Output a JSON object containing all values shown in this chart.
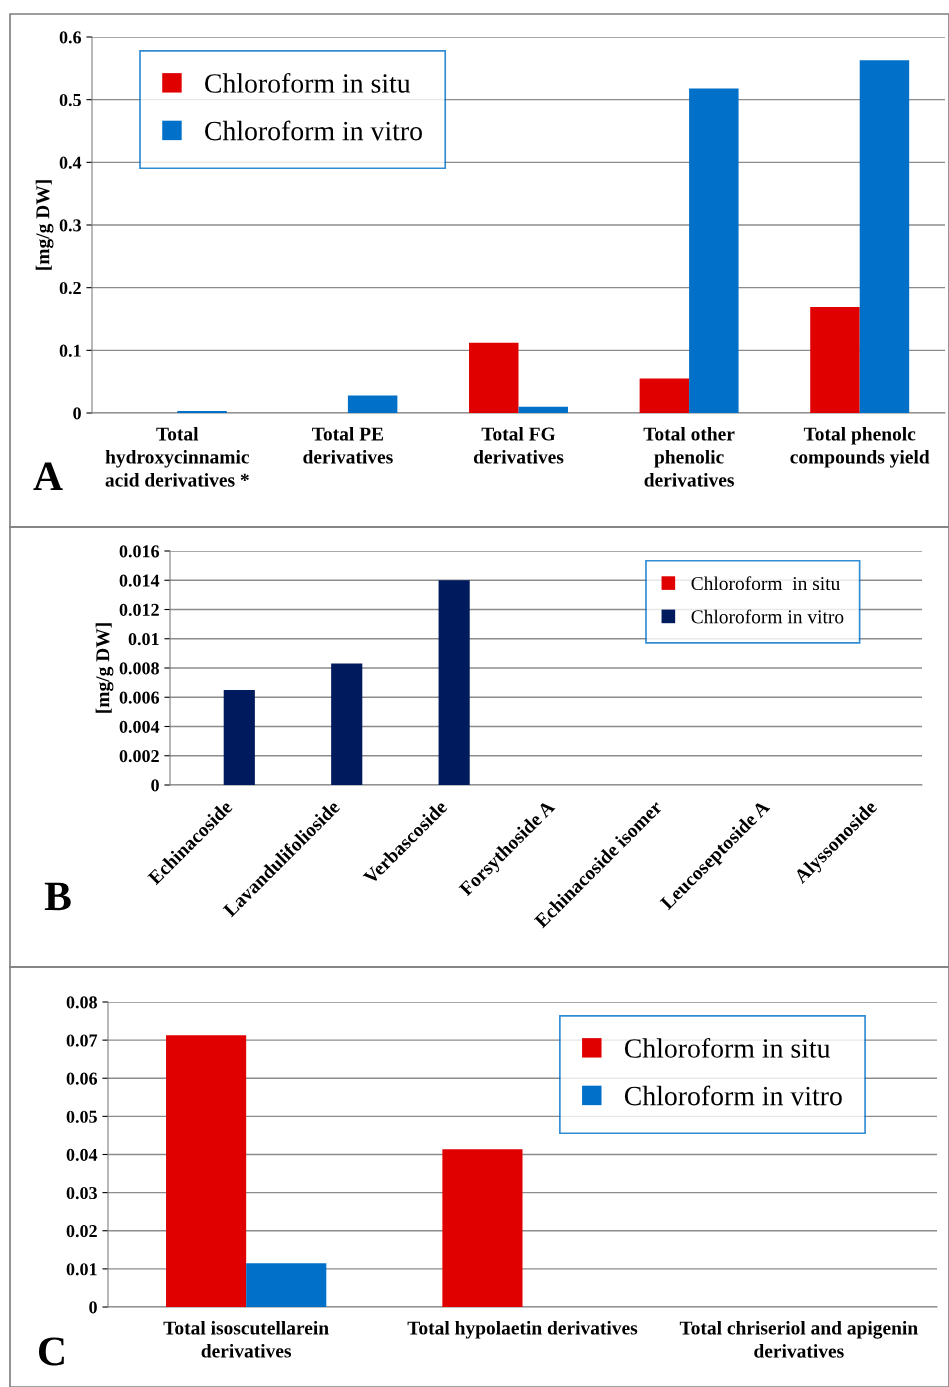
{
  "chart_data": [
    {
      "type": "bar",
      "ylabel": "[mg/g DW]",
      "annotations": [
        "A"
      ],
      "categories": [
        "Total hydroxycinnamic acid derivatives *",
        "Total PE derivatives",
        "Total FG derivatives",
        "Total other phenolic derivatives",
        "Total phenolc compounds yield"
      ],
      "series": [
        {
          "name": "Chloroform in situ",
          "color": "#e00000",
          "values": [
            0,
            0,
            0.112,
            0.055,
            0.169
          ]
        },
        {
          "name": "Chloroform in vitro",
          "color": "#0070c8",
          "values": [
            0.003,
            0.028,
            0.01,
            0.518,
            0.563
          ]
        }
      ],
      "ylim": [
        0,
        0.6
      ],
      "yticks": [
        0,
        0.1,
        0.2,
        0.3,
        0.4,
        0.5,
        0.6
      ],
      "grid": "y",
      "legend": "top left"
    },
    {
      "type": "bar",
      "ylabel": "[mg/g DW]",
      "annotations": [
        "B"
      ],
      "categories": [
        "Echinacoside",
        "Lavandulifolioside",
        "Verbascoside",
        "Forsythoside A",
        "Echinacoside isomer",
        "Leucoseptoside A",
        "Alyssonoside"
      ],
      "series": [
        {
          "name": "Chloroform  in situ",
          "color": "#e00000",
          "values": [
            0,
            0,
            0,
            0,
            0,
            0,
            0
          ]
        },
        {
          "name": "Chloroform in vitro",
          "color": "#001a5e",
          "values": [
            0.0065,
            0.0083,
            0.014,
            0,
            0,
            0,
            0
          ]
        }
      ],
      "ylim": [
        0,
        0.016
      ],
      "yticks": [
        0,
        0.002,
        0.004,
        0.006,
        0.008,
        0.01,
        0.012,
        0.014,
        0.016
      ],
      "grid": "y",
      "legend": "top right"
    },
    {
      "type": "bar",
      "annotations": [
        "C"
      ],
      "categories": [
        "Total isoscutellarein derivatives",
        "Total hypolaetin derivatives",
        "Total chriseriol and apigenin derivatives"
      ],
      "series": [
        {
          "name": "Chloroform in situ",
          "color": "#e00000",
          "values": [
            0.0713,
            0.0414,
            0
          ]
        },
        {
          "name": "Chloroform in vitro",
          "color": "#0070c8",
          "values": [
            0.0115,
            0,
            0
          ]
        }
      ],
      "ylim": [
        0,
        0.08
      ],
      "yticks": [
        0,
        0.01,
        0.02,
        0.03,
        0.04,
        0.05,
        0.06,
        0.07,
        0.08
      ],
      "grid": "y",
      "legend": "top right"
    }
  ]
}
